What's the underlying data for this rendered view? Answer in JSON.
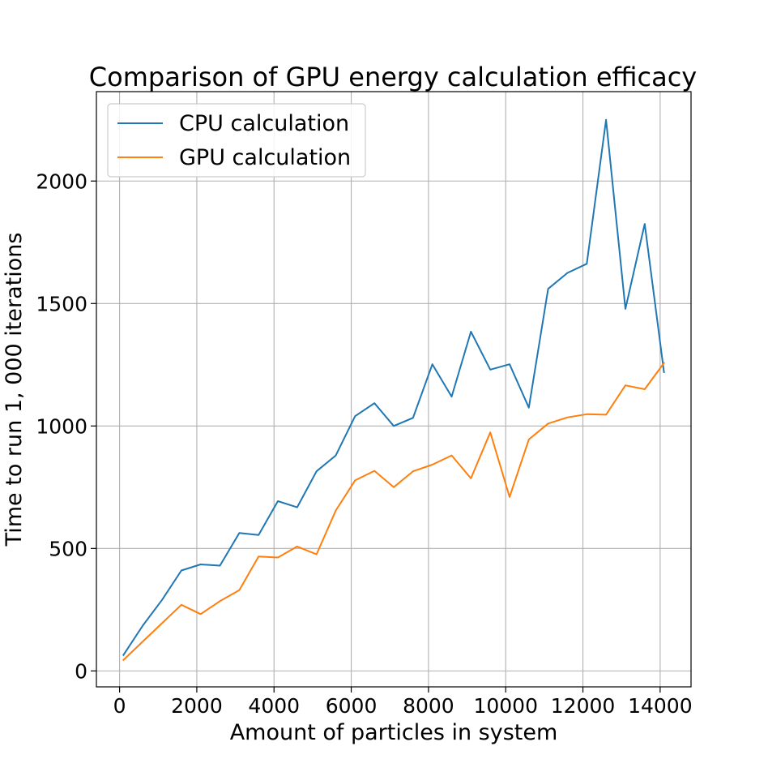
{
  "chart_data": {
    "type": "line",
    "title": "Comparison of GPU energy calculation efficacy",
    "xlabel": "Amount of particles in system",
    "ylabel": "Time to run 1, 000 iterations",
    "xlim": [
      -600,
      14800
    ],
    "ylim": [
      -65,
      2365
    ],
    "xticks": [
      0,
      2000,
      4000,
      6000,
      8000,
      10000,
      12000,
      14000
    ],
    "yticks": [
      0,
      500,
      1000,
      1500,
      2000
    ],
    "grid": true,
    "legend_position": "top-left",
    "x": [
      100,
      600,
      1100,
      1600,
      2100,
      2600,
      3100,
      3600,
      4100,
      4600,
      5100,
      5600,
      6100,
      6600,
      7100,
      7600,
      8100,
      8600,
      9100,
      9600,
      10100,
      10600,
      11100,
      11600,
      12100,
      12600,
      13100,
      13600,
      14100
    ],
    "series": [
      {
        "name": "CPU calculation",
        "color": "#1f77b4",
        "values": [
          65,
          185,
          290,
          410,
          435,
          430,
          563,
          555,
          693,
          668,
          815,
          880,
          1040,
          1093,
          1000,
          1033,
          1252,
          1120,
          1385,
          1230,
          1252,
          1075,
          1560,
          1625,
          1662,
          2250,
          1478,
          1825,
          1220
        ]
      },
      {
        "name": "GPU calculation",
        "color": "#ff7f0e",
        "values": [
          45,
          120,
          195,
          270,
          232,
          285,
          330,
          467,
          463,
          508,
          476,
          655,
          778,
          817,
          750,
          815,
          842,
          880,
          786,
          974,
          710,
          945,
          1010,
          1035,
          1048,
          1046,
          1166,
          1150,
          1257
        ]
      }
    ]
  }
}
